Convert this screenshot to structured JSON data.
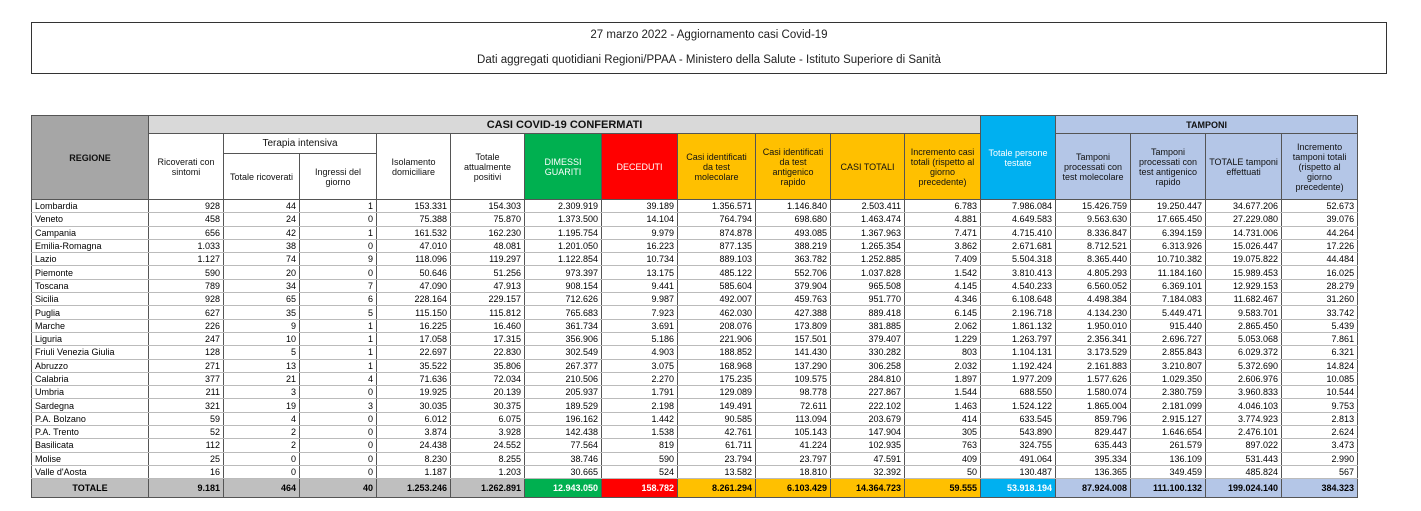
{
  "header": {
    "title": "27 marzo 2022 - Aggiornamento casi Covid-19",
    "subtitle": "Dati aggregati quotidiani Regioni/PPAA - Ministero della Salute - Istituto Superiore di Sanità"
  },
  "table": {
    "group_headers": {
      "cases": "CASI COVID-19 CONFERMATI",
      "icu": "Terapia intensiva",
      "tests": "TAMPONI"
    },
    "columns": [
      "REGIONE",
      "Ricoverati con sintomi",
      "Totale ricoverati",
      "Ingressi del giorno",
      "Isolamento domiciliare",
      "Totale attualmente positivi",
      "DIMESSI GUARITI",
      "DECEDUTI",
      "Casi identificati da test molecolare",
      "Casi identificati da test antigenico rapido",
      "CASI TOTALI",
      "Incremento casi totali (rispetto al giorno precedente)",
      "Totale persone testate",
      "Tamponi processati con test molecolare",
      "Tamponi processati con test antigenico rapido",
      "TOTALE tamponi effettuati",
      "Incremento tamponi totali (rispetto al giorno precedente)"
    ],
    "rows": [
      [
        "Lombardia",
        "928",
        "44",
        "1",
        "153.331",
        "154.303",
        "2.309.919",
        "39.189",
        "1.356.571",
        "1.146.840",
        "2.503.411",
        "6.783",
        "7.986.084",
        "15.426.759",
        "19.250.447",
        "34.677.206",
        "52.673"
      ],
      [
        "Veneto",
        "458",
        "24",
        "0",
        "75.388",
        "75.870",
        "1.373.500",
        "14.104",
        "764.794",
        "698.680",
        "1.463.474",
        "4.881",
        "4.649.583",
        "9.563.630",
        "17.665.450",
        "27.229.080",
        "39.076"
      ],
      [
        "Campania",
        "656",
        "42",
        "1",
        "161.532",
        "162.230",
        "1.195.754",
        "9.979",
        "874.878",
        "493.085",
        "1.367.963",
        "7.471",
        "4.715.410",
        "8.336.847",
        "6.394.159",
        "14.731.006",
        "44.264"
      ],
      [
        "Emilia-Romagna",
        "1.033",
        "38",
        "0",
        "47.010",
        "48.081",
        "1.201.050",
        "16.223",
        "877.135",
        "388.219",
        "1.265.354",
        "3.862",
        "2.671.681",
        "8.712.521",
        "6.313.926",
        "15.026.447",
        "17.226"
      ],
      [
        "Lazio",
        "1.127",
        "74",
        "9",
        "118.096",
        "119.297",
        "1.122.854",
        "10.734",
        "889.103",
        "363.782",
        "1.252.885",
        "7.409",
        "5.504.318",
        "8.365.440",
        "10.710.382",
        "19.075.822",
        "44.484"
      ],
      [
        "Piemonte",
        "590",
        "20",
        "0",
        "50.646",
        "51.256",
        "973.397",
        "13.175",
        "485.122",
        "552.706",
        "1.037.828",
        "1.542",
        "3.810.413",
        "4.805.293",
        "11.184.160",
        "15.989.453",
        "16.025"
      ],
      [
        "Toscana",
        "789",
        "34",
        "7",
        "47.090",
        "47.913",
        "908.154",
        "9.441",
        "585.604",
        "379.904",
        "965.508",
        "4.145",
        "4.540.233",
        "6.560.052",
        "6.369.101",
        "12.929.153",
        "28.279"
      ],
      [
        "Sicilia",
        "928",
        "65",
        "6",
        "228.164",
        "229.157",
        "712.626",
        "9.987",
        "492.007",
        "459.763",
        "951.770",
        "4.346",
        "6.108.648",
        "4.498.384",
        "7.184.083",
        "11.682.467",
        "31.260"
      ],
      [
        "Puglia",
        "627",
        "35",
        "5",
        "115.150",
        "115.812",
        "765.683",
        "7.923",
        "462.030",
        "427.388",
        "889.418",
        "6.145",
        "2.196.718",
        "4.134.230",
        "5.449.471",
        "9.583.701",
        "33.742"
      ],
      [
        "Marche",
        "226",
        "9",
        "1",
        "16.225",
        "16.460",
        "361.734",
        "3.691",
        "208.076",
        "173.809",
        "381.885",
        "2.062",
        "1.861.132",
        "1.950.010",
        "915.440",
        "2.865.450",
        "5.439"
      ],
      [
        "Liguria",
        "247",
        "10",
        "1",
        "17.058",
        "17.315",
        "356.906",
        "5.186",
        "221.906",
        "157.501",
        "379.407",
        "1.229",
        "1.263.797",
        "2.356.341",
        "2.696.727",
        "5.053.068",
        "7.861"
      ],
      [
        "Friuli Venezia Giulia",
        "128",
        "5",
        "1",
        "22.697",
        "22.830",
        "302.549",
        "4.903",
        "188.852",
        "141.430",
        "330.282",
        "803",
        "1.104.131",
        "3.173.529",
        "2.855.843",
        "6.029.372",
        "6.321"
      ],
      [
        "Abruzzo",
        "271",
        "13",
        "1",
        "35.522",
        "35.806",
        "267.377",
        "3.075",
        "168.968",
        "137.290",
        "306.258",
        "2.032",
        "1.192.424",
        "2.161.883",
        "3.210.807",
        "5.372.690",
        "14.824"
      ],
      [
        "Calabria",
        "377",
        "21",
        "4",
        "71.636",
        "72.034",
        "210.506",
        "2.270",
        "175.235",
        "109.575",
        "284.810",
        "1.897",
        "1.977.209",
        "1.577.626",
        "1.029.350",
        "2.606.976",
        "10.085"
      ],
      [
        "Umbria",
        "211",
        "3",
        "0",
        "19.925",
        "20.139",
        "205.937",
        "1.791",
        "129.089",
        "98.778",
        "227.867",
        "1.544",
        "688.550",
        "1.580.074",
        "2.380.759",
        "3.960.833",
        "10.544"
      ],
      [
        "Sardegna",
        "321",
        "19",
        "3",
        "30.035",
        "30.375",
        "189.529",
        "2.198",
        "149.491",
        "72.611",
        "222.102",
        "1.463",
        "1.524.122",
        "1.865.004",
        "2.181.099",
        "4.046.103",
        "9.753"
      ],
      [
        "P.A. Bolzano",
        "59",
        "4",
        "0",
        "6.012",
        "6.075",
        "196.162",
        "1.442",
        "90.585",
        "113.094",
        "203.679",
        "414",
        "633.545",
        "859.796",
        "2.915.127",
        "3.774.923",
        "2.813"
      ],
      [
        "P.A. Trento",
        "52",
        "2",
        "0",
        "3.874",
        "3.928",
        "142.438",
        "1.538",
        "42.761",
        "105.143",
        "147.904",
        "305",
        "543.890",
        "829.447",
        "1.646.654",
        "2.476.101",
        "2.624"
      ],
      [
        "Basilicata",
        "112",
        "2",
        "0",
        "24.438",
        "24.552",
        "77.564",
        "819",
        "61.711",
        "41.224",
        "102.935",
        "763",
        "324.755",
        "635.443",
        "261.579",
        "897.022",
        "3.473"
      ],
      [
        "Molise",
        "25",
        "0",
        "0",
        "8.230",
        "8.255",
        "38.746",
        "590",
        "23.794",
        "23.797",
        "47.591",
        "409",
        "491.064",
        "395.334",
        "136.109",
        "531.443",
        "2.990"
      ],
      [
        "Valle d'Aosta",
        "16",
        "0",
        "0",
        "1.187",
        "1.203",
        "30.665",
        "524",
        "13.582",
        "18.810",
        "32.392",
        "50",
        "130.487",
        "136.365",
        "349.459",
        "485.824",
        "567"
      ]
    ],
    "total": [
      "TOTALE",
      "9.181",
      "464",
      "40",
      "1.253.246",
      "1.262.891",
      "12.943.050",
      "158.782",
      "8.261.294",
      "6.103.429",
      "14.364.723",
      "59.555",
      "53.918.194",
      "87.924.008",
      "111.100.132",
      "199.024.140",
      "384.323"
    ]
  }
}
